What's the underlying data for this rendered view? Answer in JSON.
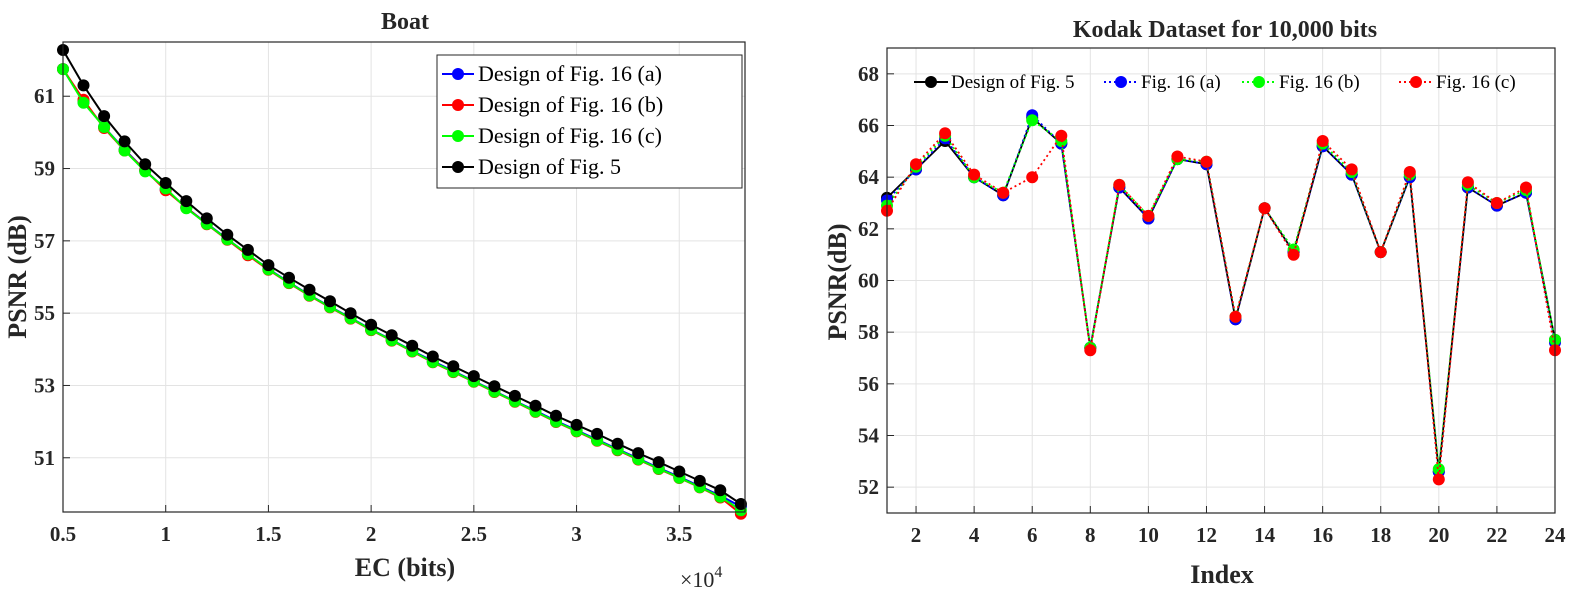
{
  "chart_data": [
    {
      "type": "line",
      "title": "Boat",
      "xlabel": "EC (bits)",
      "ylabel": "PSNR (dB)",
      "x_multiplier_label": "×10",
      "x_multiplier_exp": "4",
      "xlim": [
        0.5,
        3.82
      ],
      "ylim": [
        49.5,
        62.5
      ],
      "xticks": [
        0.5,
        1,
        1.5,
        2,
        2.5,
        3,
        3.5
      ],
      "xtick_labels": [
        "0.5",
        "1",
        "1.5",
        "2",
        "2.5",
        "3",
        "3.5"
      ],
      "yticks": [
        51,
        53,
        55,
        57,
        59,
        61
      ],
      "grid": true,
      "legend_position": "top-right",
      "x": [
        0.5,
        0.6,
        0.7,
        0.8,
        0.9,
        1.0,
        1.1,
        1.2,
        1.3,
        1.4,
        1.5,
        1.6,
        1.7,
        1.8,
        1.9,
        2.0,
        2.1,
        2.2,
        2.3,
        2.4,
        2.5,
        2.6,
        2.7,
        2.8,
        2.9,
        3.0,
        3.1,
        3.2,
        3.3,
        3.4,
        3.5,
        3.6,
        3.7,
        3.8
      ],
      "series": [
        {
          "name": "Design of Fig. 16 (a)",
          "color": "#0000ff",
          "values": [
            61.75,
            60.85,
            60.15,
            59.52,
            58.95,
            58.42,
            57.92,
            57.48,
            57.05,
            56.62,
            56.22,
            55.85,
            55.5,
            55.18,
            54.87,
            54.55,
            54.26,
            53.96,
            53.67,
            53.4,
            53.12,
            52.84,
            52.57,
            52.3,
            52.02,
            51.76,
            51.5,
            51.24,
            50.98,
            50.72,
            50.47,
            50.21,
            49.95,
            49.65
          ]
        },
        {
          "name": "Design of Fig. 16 (b)",
          "color": "#ff0000",
          "values": [
            61.75,
            60.9,
            60.12,
            59.5,
            58.95,
            58.4,
            57.92,
            57.46,
            57.03,
            56.6,
            56.2,
            55.83,
            55.48,
            55.16,
            54.85,
            54.53,
            54.24,
            53.94,
            53.64,
            53.37,
            53.1,
            52.82,
            52.55,
            52.27,
            51.99,
            51.73,
            51.47,
            51.21,
            50.95,
            50.69,
            50.44,
            50.18,
            49.9,
            49.45
          ]
        },
        {
          "name": "Design of Fig. 16 (c)",
          "color": "#00ff00",
          "values": [
            61.75,
            60.82,
            60.15,
            59.5,
            58.92,
            58.45,
            57.9,
            57.47,
            57.04,
            56.63,
            56.21,
            55.84,
            55.49,
            55.17,
            54.86,
            54.54,
            54.25,
            53.95,
            53.65,
            53.38,
            53.11,
            52.83,
            52.56,
            52.28,
            52.0,
            51.74,
            51.48,
            51.22,
            50.96,
            50.7,
            50.45,
            50.19,
            49.92,
            49.55
          ]
        },
        {
          "name": "Design of Fig. 5",
          "color": "#000000",
          "values": [
            62.28,
            61.3,
            60.45,
            59.75,
            59.12,
            58.6,
            58.1,
            57.62,
            57.17,
            56.75,
            56.33,
            55.98,
            55.65,
            55.33,
            55.0,
            54.68,
            54.39,
            54.1,
            53.8,
            53.53,
            53.26,
            52.98,
            52.71,
            52.44,
            52.16,
            51.91,
            51.66,
            51.39,
            51.13,
            50.88,
            50.62,
            50.36,
            50.1,
            49.72
          ]
        }
      ]
    },
    {
      "type": "line",
      "title": "Kodak Dataset for 10,000 bits",
      "xlabel": "Index",
      "ylabel": "PSNR(dB)",
      "xlim": [
        1,
        24
      ],
      "ylim": [
        51,
        69
      ],
      "xticks": [
        2,
        4,
        6,
        8,
        10,
        12,
        14,
        16,
        18,
        20,
        22,
        24
      ],
      "yticks": [
        52,
        54,
        56,
        58,
        60,
        62,
        64,
        66,
        68
      ],
      "grid": true,
      "legend_position": "top",
      "x": [
        1,
        2,
        3,
        4,
        5,
        6,
        7,
        8,
        9,
        10,
        11,
        12,
        13,
        14,
        15,
        16,
        17,
        18,
        19,
        20,
        21,
        22,
        23,
        24
      ],
      "series": [
        {
          "name": "Design of Fig. 5",
          "color": "#000000",
          "line": "solid",
          "values": [
            63.2,
            64.3,
            65.4,
            64.0,
            63.3,
            66.3,
            65.3,
            57.4,
            63.6,
            62.4,
            64.7,
            64.5,
            58.5,
            62.8,
            61.1,
            65.2,
            64.1,
            61.1,
            64.0,
            52.6,
            63.6,
            62.9,
            63.4,
            57.7
          ]
        },
        {
          "name": "Fig. 16 (a)",
          "color": "#0000ff",
          "line": "dotted",
          "values": [
            63.1,
            64.3,
            65.5,
            64.0,
            63.3,
            66.4,
            65.3,
            57.4,
            63.6,
            62.4,
            64.7,
            64.5,
            58.5,
            62.8,
            61.1,
            65.2,
            64.1,
            61.1,
            64.0,
            52.6,
            63.6,
            62.9,
            63.4,
            57.6
          ]
        },
        {
          "name": "Fig. 16 (b)",
          "color": "#00ff00",
          "line": "dotted",
          "values": [
            62.9,
            64.4,
            65.6,
            64.0,
            63.4,
            66.2,
            65.4,
            57.4,
            63.7,
            62.5,
            64.7,
            64.6,
            58.6,
            62.8,
            61.2,
            65.3,
            64.2,
            61.1,
            64.1,
            52.7,
            63.7,
            63.0,
            63.5,
            57.7
          ]
        },
        {
          "name": "Fig. 16 (c)",
          "color": "#ff0000",
          "line": "dotted",
          "values": [
            62.7,
            64.5,
            65.7,
            64.1,
            63.4,
            64.0,
            65.6,
            57.3,
            63.7,
            62.5,
            64.8,
            64.6,
            58.6,
            62.8,
            61.0,
            65.4,
            64.3,
            61.1,
            64.2,
            52.3,
            63.8,
            63.0,
            63.6,
            57.3
          ]
        }
      ]
    }
  ]
}
